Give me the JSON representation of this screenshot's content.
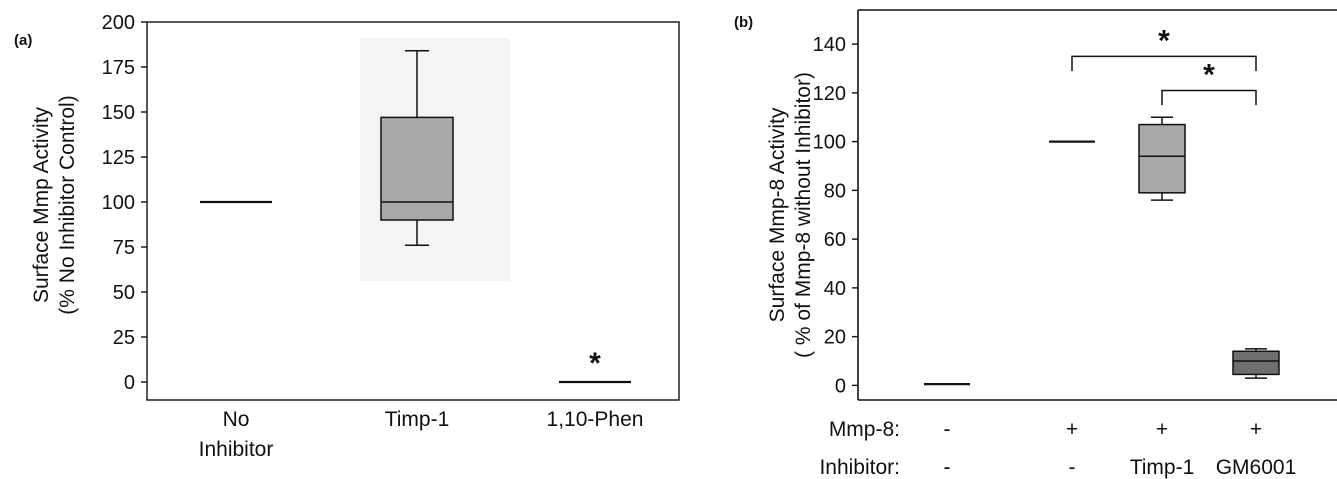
{
  "chart_data": [
    {
      "panel_label": "(a)",
      "type": "box",
      "ylabel_line1": "Surface Mmp Activity",
      "ylabel_line2": "(% No Inhibitor Control)",
      "yticks": [
        0,
        25,
        50,
        75,
        100,
        125,
        150,
        175,
        200
      ],
      "ylim": [
        -10,
        200
      ],
      "categories": [
        {
          "line1": "No",
          "line2": "Inhibitor"
        },
        {
          "line1": "Timp-1",
          "line2": ""
        },
        {
          "line1": "1,10-Phen",
          "line2": ""
        }
      ],
      "boxes": [
        {
          "category": 0,
          "min": 100,
          "q1": 100,
          "median": 100,
          "q3": 100,
          "max": 100,
          "color": "#a9a9a9"
        },
        {
          "category": 1,
          "min": 76,
          "q1": 90,
          "median": 100,
          "q3": 147,
          "max": 184,
          "color": "#a9a9a9"
        },
        {
          "category": 2,
          "min": 0,
          "q1": 0,
          "median": 0,
          "q3": 0,
          "max": 0,
          "color": "#a9a9a9"
        }
      ],
      "annotations": [
        {
          "text": "*",
          "category": 2,
          "y": 5
        }
      ],
      "brackets": []
    },
    {
      "panel_label": "(b)",
      "type": "box",
      "ylabel_line1": "Surface Mmp-8 Activity",
      "ylabel_line2": "( % of Mmp-8 without Inhibitor)",
      "yticks": [
        0,
        20,
        40,
        60,
        80,
        100,
        120,
        140
      ],
      "ylim": [
        -6,
        154
      ],
      "categories": [
        {
          "line1": "-",
          "line2": "-"
        },
        {
          "line1": "+",
          "line2": "-"
        },
        {
          "line1": "+",
          "line2": "Timp-1"
        },
        {
          "line1": "+",
          "line2": "GM6001"
        }
      ],
      "row_labels": [
        "Mmp-8:",
        "Inhibitor:"
      ],
      "boxes": [
        {
          "category": 0,
          "min": 0,
          "q1": 0,
          "median": 0.5,
          "q3": 1,
          "max": 1,
          "color": "#a9a9a9"
        },
        {
          "category": 1,
          "min": 100,
          "q1": 100,
          "median": 100,
          "q3": 100,
          "max": 100,
          "color": "#a9a9a9"
        },
        {
          "category": 2,
          "min": 76,
          "q1": 79,
          "median": 94,
          "q3": 107,
          "max": 110,
          "color": "#a9a9a9"
        },
        {
          "category": 3,
          "min": 3,
          "q1": 4.5,
          "median": 10,
          "q3": 14,
          "max": 15,
          "color": "#6f6f6f"
        }
      ],
      "annotations": [],
      "brackets": [
        {
          "from": 1,
          "to": 3,
          "y": 135,
          "drop": 6,
          "label": "*"
        },
        {
          "from": 2,
          "to": 3,
          "y": 121,
          "drop": 6,
          "label": "*"
        }
      ]
    }
  ]
}
